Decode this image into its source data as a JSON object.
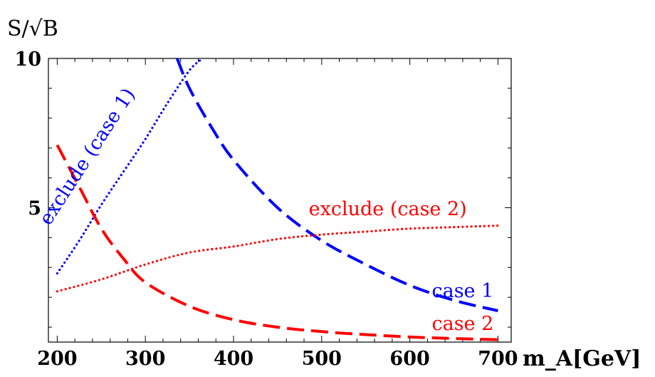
{
  "chart_data": {
    "type": "line",
    "ylabel": "S/√B",
    "xlabel": "m_A[GeV]",
    "xlim": [
      190,
      715
    ],
    "ylim": [
      0.5,
      10
    ],
    "x_ticks": [
      "200",
      "300",
      "400",
      "500",
      "600",
      "700"
    ],
    "y_ticks": [
      "5",
      "10"
    ],
    "grid": false,
    "series": [
      {
        "name": "exclude (case 1)",
        "color": "#0000ff",
        "style": "dotted",
        "x": [
          200,
          225,
          250,
          275,
          300,
          325,
          350,
          365
        ],
        "y": [
          2.8,
          3.9,
          5.1,
          6.2,
          7.3,
          8.5,
          9.6,
          10.0
        ]
      },
      {
        "name": "case 1",
        "color": "#0000ff",
        "style": "dashed",
        "x": [
          336,
          350,
          375,
          400,
          450,
          500,
          550,
          600,
          650,
          700
        ],
        "y": [
          10.0,
          9.0,
          7.7,
          6.6,
          5.0,
          3.9,
          3.1,
          2.4,
          1.9,
          1.55
        ]
      },
      {
        "name": "exclude (case 2)",
        "color": "#ff0000",
        "style": "dotted",
        "x": [
          200,
          250,
          300,
          350,
          400,
          450,
          500,
          550,
          600,
          650,
          700
        ],
        "y": [
          2.2,
          2.6,
          3.1,
          3.5,
          3.7,
          3.95,
          4.1,
          4.2,
          4.3,
          4.35,
          4.4
        ]
      },
      {
        "name": "case 2",
        "color": "#ff0000",
        "style": "dashed",
        "x": [
          200,
          225,
          250,
          275,
          300,
          350,
          400,
          450,
          500,
          550,
          600,
          650,
          700
        ],
        "y": [
          7.1,
          5.7,
          4.3,
          3.3,
          2.5,
          1.7,
          1.25,
          1.0,
          0.85,
          0.75,
          0.67,
          0.62,
          0.58
        ]
      }
    ],
    "annotations": [
      {
        "text": "exclude (case 1)",
        "color": "#0000ff",
        "x": 240,
        "y": 6.6,
        "angle": -57
      },
      {
        "text": "exclude (case 2)",
        "color": "#ff0000",
        "x": 575,
        "y": 4.75,
        "angle": 0
      },
      {
        "text": "case 1",
        "color": "#0000ff",
        "x": 660,
        "y": 2.0,
        "angle": 0
      },
      {
        "text": "case 2",
        "color": "#ff0000",
        "x": 660,
        "y": 0.9,
        "angle": 0
      }
    ]
  }
}
